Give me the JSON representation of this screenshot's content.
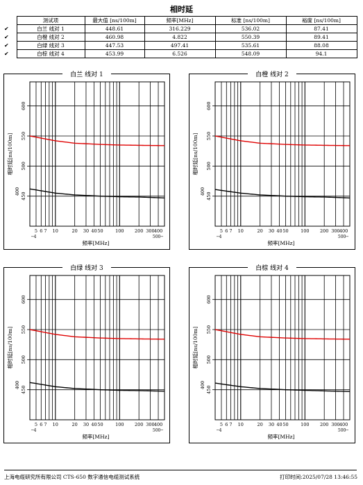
{
  "title": "相时延",
  "table": {
    "headers": [
      "测试项",
      "最大值 [ns/100m]",
      "频率[MHz]",
      "标准 [ns/100m]",
      "裕度 [ns/100m]"
    ],
    "rows": [
      {
        "check": "✔",
        "item": "白兰 线对 1",
        "max": "448.61",
        "freq": "316.229",
        "std": "536.02",
        "margin": "87.41"
      },
      {
        "check": "✔",
        "item": "白橙 线对 2",
        "max": "460.98",
        "freq": "4.822",
        "std": "550.39",
        "margin": "89.41"
      },
      {
        "check": "✔",
        "item": "白绿 线对 3",
        "max": "447.53",
        "freq": "497.41",
        "std": "535.61",
        "margin": "88.08"
      },
      {
        "check": "✔",
        "item": "白棕 线对 4",
        "max": "453.99",
        "freq": "6.526",
        "std": "548.09",
        "margin": "94.1"
      }
    ]
  },
  "charts": {
    "ylabel": "相时延[ns/100m]",
    "xlabel": "频率[MHz]",
    "x_tick_labels": [
      "5",
      "6",
      "7",
      "10",
      "20",
      "30",
      "40",
      "50",
      "100",
      "200",
      "300",
      "400"
    ],
    "x_minor_labels": [
      "4",
      "500"
    ],
    "y_tick_labels": [
      "450",
      "500",
      "550",
      "600",
      "400"
    ],
    "panels": [
      "白兰 线对 1",
      "白橙 线对 2",
      "白绿 线对 3",
      "白棕 线对 4"
    ]
  },
  "chart_data": [
    {
      "type": "line",
      "title": "白兰 线对 1",
      "xlabel": "频率[MHz]",
      "ylabel": "相时延[ns/100m]",
      "xscale": "log",
      "xlim": [
        4,
        500
      ],
      "ylim": [
        400,
        640
      ],
      "series": [
        {
          "color": "#e00000",
          "x": [
            4,
            10,
            20,
            50,
            100,
            200,
            500
          ],
          "y": [
            550,
            542,
            538,
            536,
            535,
            534.5,
            534
          ]
        },
        {
          "color": "#000000",
          "x": [
            4,
            10,
            20,
            50,
            100,
            200,
            500
          ],
          "y": [
            462,
            455,
            452,
            450,
            449,
            448.5,
            447
          ]
        }
      ]
    },
    {
      "type": "line",
      "title": "白橙 线对 2",
      "xlabel": "频率[MHz]",
      "ylabel": "相时延[ns/100m]",
      "xscale": "log",
      "xlim": [
        4,
        500
      ],
      "ylim": [
        400,
        640
      ],
      "series": [
        {
          "color": "#e00000",
          "x": [
            4,
            10,
            20,
            50,
            100,
            200,
            500
          ],
          "y": [
            550,
            542,
            538,
            536,
            535,
            534.5,
            534
          ]
        },
        {
          "color": "#000000",
          "x": [
            4,
            10,
            20,
            50,
            100,
            200,
            500
          ],
          "y": [
            461,
            455,
            452,
            450,
            449,
            448.5,
            447
          ]
        }
      ]
    },
    {
      "type": "line",
      "title": "白绿 线对 3",
      "xlabel": "频率[MHz]",
      "ylabel": "相时延[ns/100m]",
      "xscale": "log",
      "xlim": [
        4,
        500
      ],
      "ylim": [
        400,
        640
      ],
      "series": [
        {
          "color": "#e00000",
          "x": [
            4,
            10,
            20,
            50,
            100,
            200,
            500
          ],
          "y": [
            550,
            542,
            538,
            536,
            535,
            534.5,
            534
          ]
        },
        {
          "color": "#000000",
          "x": [
            4,
            10,
            20,
            50,
            100,
            200,
            500
          ],
          "y": [
            462,
            455,
            452,
            450,
            449,
            448.5,
            447.5
          ]
        }
      ]
    },
    {
      "type": "line",
      "title": "白棕 线对 4",
      "xlabel": "频率[MHz]",
      "ylabel": "相时延[ns/100m]",
      "xscale": "log",
      "xlim": [
        4,
        500
      ],
      "ylim": [
        400,
        640
      ],
      "series": [
        {
          "color": "#e00000",
          "x": [
            4,
            10,
            20,
            50,
            100,
            200,
            500
          ],
          "y": [
            550,
            542,
            538,
            536,
            535,
            534.5,
            534
          ]
        },
        {
          "color": "#000000",
          "x": [
            4,
            10,
            20,
            50,
            100,
            200,
            500
          ],
          "y": [
            461,
            455,
            452,
            450,
            449,
            448,
            447
          ]
        }
      ]
    }
  ],
  "footer": {
    "left": "上海电缆研究所有限公司 CTS-650 数字通信电缆测试系统",
    "right": "打印时间:2025/07/28 13:46:55"
  }
}
